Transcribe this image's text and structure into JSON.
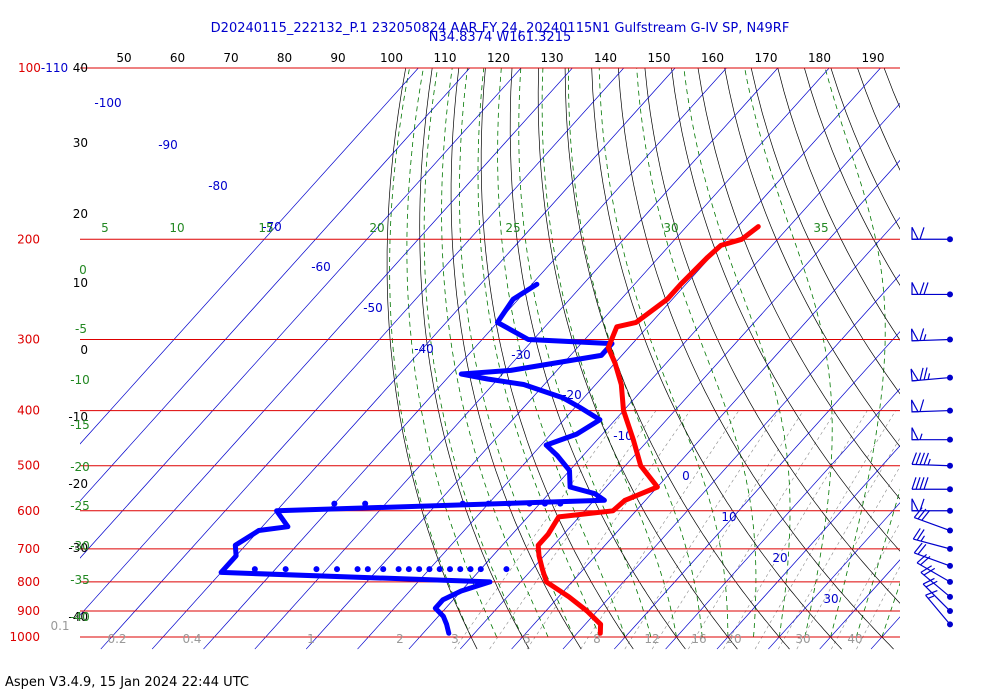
{
  "header": {
    "line1": "D20240115_222132_P.1 232050824 AAR FY 24, 20240115N1 Gulfstream G-IV SP, N49RF",
    "line2": "N34.8374 W161.3215"
  },
  "footer": {
    "text": "Aspen V3.4.9, 15 Jan 2024  22:44 UTC"
  },
  "colors": {
    "isobar": "#dd0000",
    "isotherm": "#0000cc",
    "dry_adiabat": "#000000",
    "moist_adiabat": "#007700",
    "mixing_ratio": "#888888",
    "temperature": "#ff0000",
    "dewpoint": "#0000ff",
    "wind": "#0000cc"
  },
  "chart_data": {
    "type": "skew-t",
    "pressure_labels": [
      {
        "p": 100,
        "label": "100-110"
      },
      {
        "p": 200,
        "label": "200"
      },
      {
        "p": 300,
        "label": "300"
      },
      {
        "p": 400,
        "label": "400"
      },
      {
        "p": 500,
        "label": "500"
      },
      {
        "p": 600,
        "label": "600"
      },
      {
        "p": 700,
        "label": "700"
      },
      {
        "p": 800,
        "label": "800"
      },
      {
        "p": 900,
        "label": "900"
      },
      {
        "p": 1000,
        "label": "1000"
      }
    ],
    "isotherm_labels": [
      "-100",
      "-90",
      "-80",
      "-70",
      "-60",
      "-50",
      "-40",
      "-30",
      "-20",
      "-10",
      "0",
      "10",
      "20",
      "30"
    ],
    "theta_top_labels": [
      "50",
      "60",
      "70",
      "80",
      "90",
      "100",
      "110",
      "120",
      "130",
      "140",
      "150",
      "160",
      "170",
      "180",
      "190"
    ],
    "theta_left_labels": [
      "40",
      "30",
      "20",
      "10",
      "0",
      "-10",
      "-20",
      "-30",
      "-40"
    ],
    "moist_labels": [
      "5",
      "10",
      "15",
      "20",
      "25",
      "30",
      "35",
      "0",
      "-5",
      "-10",
      "-15",
      "-20",
      "-25",
      "-30",
      "-35",
      "-40"
    ],
    "mixing_ratio_labels": [
      "0.1",
      "0.2",
      "0.4",
      "1",
      "2",
      "3",
      "5",
      "8",
      "12",
      "16",
      "20",
      "30",
      "40"
    ],
    "temperature": [
      {
        "p": 190,
        "t": -56
      },
      {
        "p": 200,
        "t": -57
      },
      {
        "p": 205,
        "t": -60
      },
      {
        "p": 215,
        "t": -60.5
      },
      {
        "p": 240,
        "t": -61
      },
      {
        "p": 255,
        "t": -61
      },
      {
        "p": 280,
        "t": -63
      },
      {
        "p": 285,
        "t": -66
      },
      {
        "p": 310,
        "t": -64
      },
      {
        "p": 330,
        "t": -60
      },
      {
        "p": 360,
        "t": -55
      },
      {
        "p": 400,
        "t": -50
      },
      {
        "p": 450,
        "t": -43
      },
      {
        "p": 500,
        "t": -37
      },
      {
        "p": 545,
        "t": -30
      },
      {
        "p": 575,
        "t": -34
      },
      {
        "p": 600,
        "t": -34.5
      },
      {
        "p": 615,
        "t": -44
      },
      {
        "p": 660,
        "t": -43
      },
      {
        "p": 690,
        "t": -43
      },
      {
        "p": 720,
        "t": -41
      },
      {
        "p": 760,
        "t": -38
      },
      {
        "p": 800,
        "t": -35
      },
      {
        "p": 850,
        "t": -28
      },
      {
        "p": 900,
        "t": -22
      },
      {
        "p": 950,
        "t": -17
      },
      {
        "p": 985,
        "t": -15.5
      }
    ],
    "dewpoint": [
      {
        "p": 240,
        "t": -89
      },
      {
        "p": 255,
        "t": -91
      },
      {
        "p": 280,
        "t": -90
      },
      {
        "p": 300,
        "t": -81
      },
      {
        "p": 305,
        "t": -64
      },
      {
        "p": 320,
        "t": -64
      },
      {
        "p": 340,
        "t": -79
      },
      {
        "p": 345,
        "t": -88
      },
      {
        "p": 352,
        "t": -82
      },
      {
        "p": 360,
        "t": -74
      },
      {
        "p": 380,
        "t": -64
      },
      {
        "p": 395,
        "t": -59
      },
      {
        "p": 415,
        "t": -53
      },
      {
        "p": 440,
        "t": -55
      },
      {
        "p": 460,
        "t": -59
      },
      {
        "p": 480,
        "t": -55
      },
      {
        "p": 510,
        "t": -50
      },
      {
        "p": 545,
        "t": -47
      },
      {
        "p": 560,
        "t": -41
      },
      {
        "p": 575,
        "t": -38
      },
      {
        "p": 600,
        "t": -100
      },
      {
        "p": 640,
        "t": -95
      },
      {
        "p": 650,
        "t": -100
      },
      {
        "p": 690,
        "t": -102
      },
      {
        "p": 720,
        "t": -100
      },
      {
        "p": 770,
        "t": -100
      },
      {
        "p": 800,
        "t": -46
      },
      {
        "p": 830,
        "t": -50
      },
      {
        "p": 860,
        "t": -52
      },
      {
        "p": 890,
        "t": -52
      },
      {
        "p": 920,
        "t": -49
      },
      {
        "p": 950,
        "t": -47
      },
      {
        "p": 985,
        "t": -45
      }
    ],
    "dewpoint_scatter": [
      {
        "p": 583,
        "t": -90
      },
      {
        "p": 583,
        "t": -84
      },
      {
        "p": 583,
        "t": -65
      },
      {
        "p": 583,
        "t": -60
      },
      {
        "p": 583,
        "t": -56
      },
      {
        "p": 583,
        "t": -52
      },
      {
        "p": 583,
        "t": -49
      },
      {
        "p": 583,
        "t": -46
      },
      {
        "p": 760,
        "t": -94
      },
      {
        "p": 760,
        "t": -88
      },
      {
        "p": 760,
        "t": -82
      },
      {
        "p": 760,
        "t": -78
      },
      {
        "p": 760,
        "t": -74
      },
      {
        "p": 760,
        "t": -72
      },
      {
        "p": 760,
        "t": -69
      },
      {
        "p": 760,
        "t": -66
      },
      {
        "p": 760,
        "t": -64
      },
      {
        "p": 760,
        "t": -62
      },
      {
        "p": 760,
        "t": -60
      },
      {
        "p": 760,
        "t": -58
      },
      {
        "p": 760,
        "t": -56
      },
      {
        "p": 760,
        "t": -54
      },
      {
        "p": 760,
        "t": -52
      },
      {
        "p": 760,
        "t": -50
      },
      {
        "p": 760,
        "t": -45
      }
    ],
    "winds": [
      {
        "p": 200,
        "speed": 60,
        "dir": 270
      },
      {
        "p": 250,
        "speed": 70,
        "dir": 270
      },
      {
        "p": 300,
        "speed": 65,
        "dir": 268
      },
      {
        "p": 350,
        "speed": 75,
        "dir": 265
      },
      {
        "p": 400,
        "speed": 60,
        "dir": 268
      },
      {
        "p": 450,
        "speed": 55,
        "dir": 270
      },
      {
        "p": 500,
        "speed": 45,
        "dir": 272
      },
      {
        "p": 550,
        "speed": 40,
        "dir": 270
      },
      {
        "p": 600,
        "speed": 60,
        "dir": 270
      },
      {
        "p": 650,
        "speed": 30,
        "dir": 290
      },
      {
        "p": 700,
        "speed": 25,
        "dir": 285
      },
      {
        "p": 750,
        "speed": 20,
        "dir": 290
      },
      {
        "p": 800,
        "speed": 20,
        "dir": 300
      },
      {
        "p": 850,
        "speed": 20,
        "dir": 310
      },
      {
        "p": 900,
        "speed": 20,
        "dir": 315
      },
      {
        "p": 950,
        "speed": 15,
        "dir": 320
      }
    ]
  }
}
